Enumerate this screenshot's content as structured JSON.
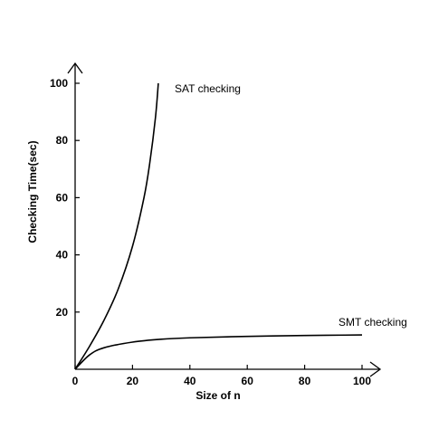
{
  "chart_data": {
    "type": "line",
    "title": "",
    "xlabel": "Size of n",
    "ylabel": "Checking Time(sec)",
    "xlim": [
      0,
      100
    ],
    "ylim": [
      0,
      100
    ],
    "x_ticks": [
      0,
      20,
      40,
      60,
      80,
      100
    ],
    "y_ticks": [
      20,
      40,
      60,
      80,
      100
    ],
    "x_tick_labels": [
      "0",
      "20",
      "40",
      "60",
      "80",
      "100"
    ],
    "y_tick_labels": [
      "20",
      "40",
      "60",
      "80",
      "100"
    ],
    "grid": false,
    "legend": "none",
    "series": [
      {
        "name": "SAT checking",
        "x": [
          0,
          5,
          10,
          15,
          20,
          24,
          26,
          28,
          29
        ],
        "y": [
          0,
          8,
          17,
          28,
          43,
          60,
          72,
          88,
          100
        ]
      },
      {
        "name": "SMT checking",
        "x": [
          0,
          5,
          10,
          20,
          30,
          40,
          60,
          80,
          100
        ],
        "y": [
          0,
          5,
          7.5,
          9.5,
          10.5,
          11,
          11.5,
          11.8,
          12
        ]
      }
    ]
  }
}
